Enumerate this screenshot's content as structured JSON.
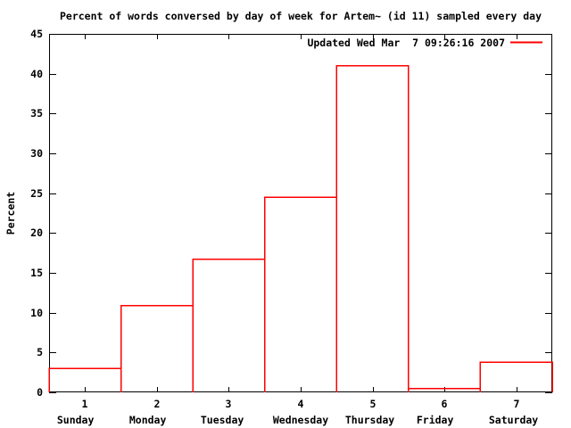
{
  "title": "Percent of words conversed by day of week for Artem~ (id 11) sampled every day",
  "legend": {
    "label": "Updated Wed Mar  7 09:26:16 2007"
  },
  "colors": {
    "series": "#ff0000",
    "axis": "#000000",
    "text": "#000000",
    "background": "#ffffff"
  },
  "chart_data": {
    "type": "bar",
    "title": "Percent of words conversed by day of week for Artem~ (id 11) sampled every day",
    "xlabel": "",
    "ylabel": "Percent",
    "categories": [
      "1",
      "2",
      "3",
      "4",
      "5",
      "6",
      "7"
    ],
    "category_names": [
      "Sunday",
      "Monday",
      "Tuesday",
      "Wednesday",
      "Thursday",
      "Friday",
      "Saturday"
    ],
    "values": [
      3.0,
      10.9,
      16.7,
      24.5,
      41.0,
      0.5,
      3.8
    ],
    "ylim": [
      0,
      45
    ],
    "ytick_step": 5,
    "xlim": [
      0.5,
      7.5
    ],
    "bar_width": 1,
    "bar_style": "outlined-histogram",
    "grid": false,
    "legend_entry": "Updated Wed Mar  7 09:26:16 2007",
    "legend_position": "top-right-inside"
  }
}
